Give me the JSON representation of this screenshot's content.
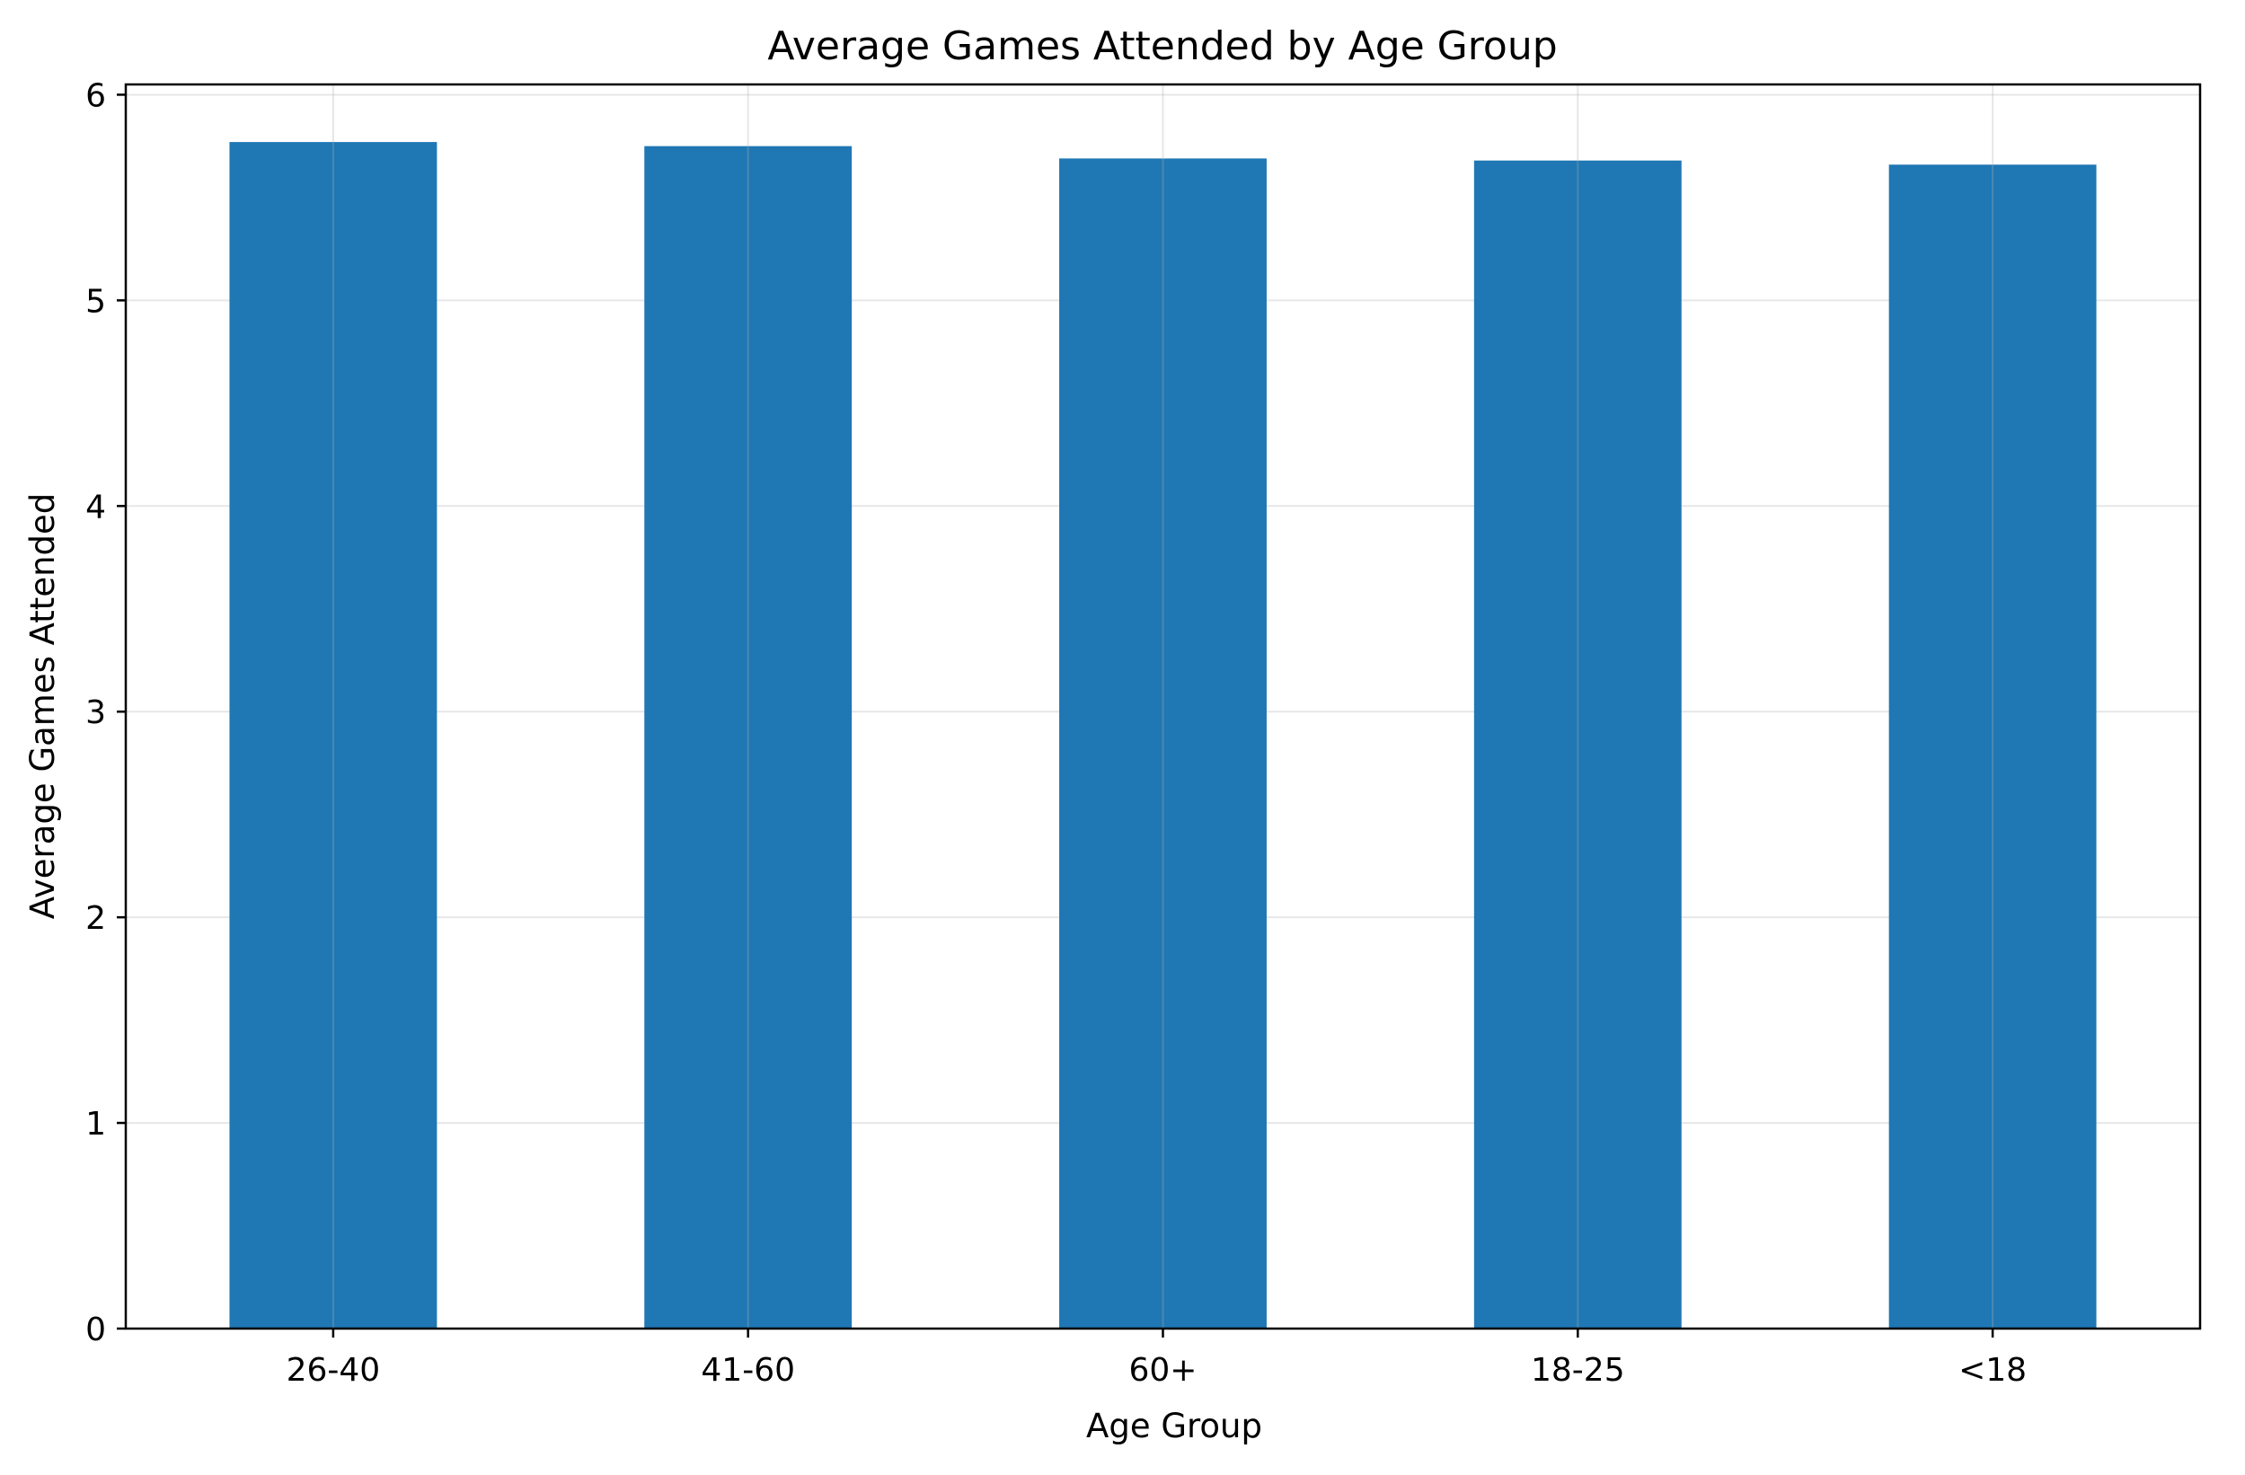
{
  "chart_data": {
    "type": "bar",
    "title": "Average Games Attended by Age Group",
    "xlabel": "Age Group",
    "ylabel": "Average Games Attended",
    "categories": [
      "26-40",
      "41-60",
      "60+",
      "18-25",
      "<18"
    ],
    "values": [
      5.77,
      5.75,
      5.69,
      5.68,
      5.66
    ],
    "ylim": [
      0,
      6.05
    ],
    "yticks": [
      0,
      1,
      2,
      3,
      4,
      5,
      6
    ],
    "ytick_labels": [
      "0",
      "1",
      "2",
      "3",
      "4",
      "5",
      "6"
    ],
    "grid": true,
    "legend": "none",
    "colors": {
      "bar": "#1f77b4",
      "grid": "#b0b0b0",
      "axis": "#000000"
    }
  }
}
